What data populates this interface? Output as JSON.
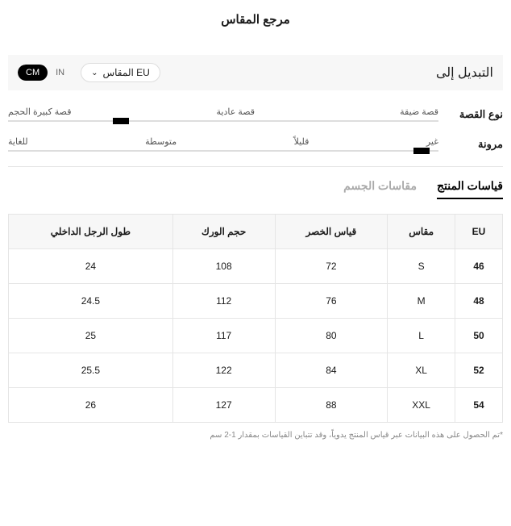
{
  "title": "مرجع المقاس",
  "switch_label": "التبديل إلى",
  "dropdown_label": "EU المقاس",
  "units": {
    "cm": "CM",
    "in": "IN",
    "active": "cm"
  },
  "attributes": [
    {
      "label": "نوع القصة",
      "options": [
        "قصة ضيقة",
        "قصة عادية",
        "قصة كبيرة الحجم"
      ],
      "marker_pct": 72
    },
    {
      "label": "مرونة",
      "options": [
        "غير",
        "قليلاً",
        "متوسطة",
        "للغاية"
      ],
      "marker_pct": 2
    }
  ],
  "tabs": [
    {
      "label": "قياسات المنتج",
      "active": true
    },
    {
      "label": "مقاسات الجسم",
      "active": false
    }
  ],
  "table": {
    "columns": [
      "EU",
      "مقاس",
      "قياس الخصر",
      "حجم الورك",
      "طول الرجل الداخلي"
    ],
    "rows": [
      [
        "46",
        "S",
        "72",
        "108",
        "24"
      ],
      [
        "48",
        "M",
        "76",
        "112",
        "24.5"
      ],
      [
        "50",
        "L",
        "80",
        "117",
        "25"
      ],
      [
        "52",
        "XL",
        "84",
        "122",
        "25.5"
      ],
      [
        "54",
        "XXL",
        "88",
        "127",
        "26"
      ]
    ]
  },
  "footnote": "*تم الحصول على هذه البيانات عبر قياس المنتج يدوياً، وقد تتباين القياسات بمقدار 1-2 سم"
}
